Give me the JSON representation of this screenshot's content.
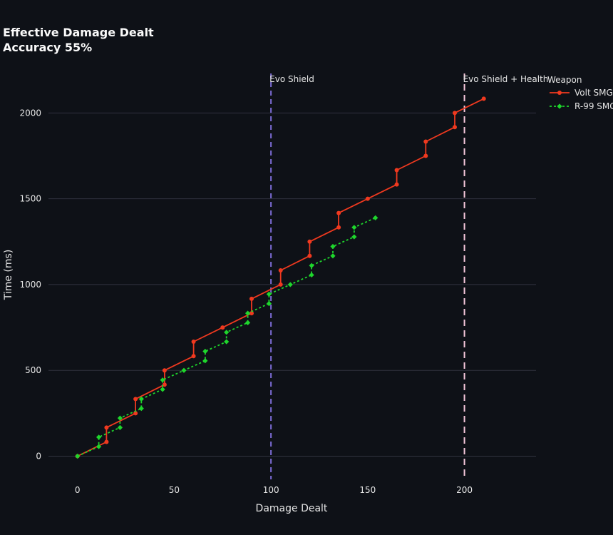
{
  "chart_data": {
    "type": "line",
    "title": [
      "Effective Damage Dealt",
      "Accuracy 55%"
    ],
    "xlabel": "Damage Dealt",
    "ylabel": "Time (ms)",
    "xlim": [
      -15,
      237
    ],
    "ylim": [
      -135,
      2230
    ],
    "x_ticks": [
      0,
      50,
      100,
      150,
      200
    ],
    "y_ticks": [
      0,
      500,
      1000,
      1500,
      2000
    ],
    "grid": "horizontal",
    "legend": {
      "title": "Weapon",
      "placement": "top-right"
    },
    "rules": [
      {
        "x": 100,
        "label": "Evo Shield",
        "color": "#7c6cd6",
        "dash": "7,5"
      },
      {
        "x": 200,
        "label": "Evo Shield + Health",
        "color": "#f7c9dc",
        "dash": "9,6"
      }
    ],
    "series": [
      {
        "name": "Volt SMG",
        "color": "#f0391f",
        "dash": "none",
        "marker": "circle",
        "points": [
          [
            0,
            0
          ],
          [
            15,
            83
          ],
          [
            15,
            167
          ],
          [
            30,
            250
          ],
          [
            30,
            333
          ],
          [
            45,
            417
          ],
          [
            45,
            500
          ],
          [
            60,
            583
          ],
          [
            60,
            667
          ],
          [
            75,
            750
          ],
          [
            90,
            833
          ],
          [
            90,
            917
          ],
          [
            105,
            1000
          ],
          [
            105,
            1083
          ],
          [
            120,
            1167
          ],
          [
            120,
            1250
          ],
          [
            135,
            1333
          ],
          [
            135,
            1417
          ],
          [
            150,
            1500
          ],
          [
            165,
            1583
          ],
          [
            165,
            1667
          ],
          [
            180,
            1750
          ],
          [
            180,
            1833
          ],
          [
            195,
            1917
          ],
          [
            195,
            2000
          ],
          [
            210,
            2083
          ]
        ]
      },
      {
        "name": "R-99 SMG",
        "color": "#1ed62c",
        "dash": "3,3",
        "marker": "diamond",
        "points": [
          [
            0,
            0
          ],
          [
            11,
            56
          ],
          [
            11,
            111
          ],
          [
            22,
            167
          ],
          [
            22,
            222
          ],
          [
            33,
            278
          ],
          [
            33,
            333
          ],
          [
            44,
            389
          ],
          [
            44,
            444
          ],
          [
            55,
            500
          ],
          [
            66,
            556
          ],
          [
            66,
            611
          ],
          [
            77,
            667
          ],
          [
            77,
            722
          ],
          [
            88,
            778
          ],
          [
            88,
            833
          ],
          [
            99,
            889
          ],
          [
            99,
            944
          ],
          [
            110,
            1000
          ],
          [
            121,
            1056
          ],
          [
            121,
            1111
          ],
          [
            132,
            1167
          ],
          [
            132,
            1222
          ],
          [
            143,
            1278
          ],
          [
            143,
            1333
          ],
          [
            154,
            1389
          ]
        ]
      }
    ]
  }
}
